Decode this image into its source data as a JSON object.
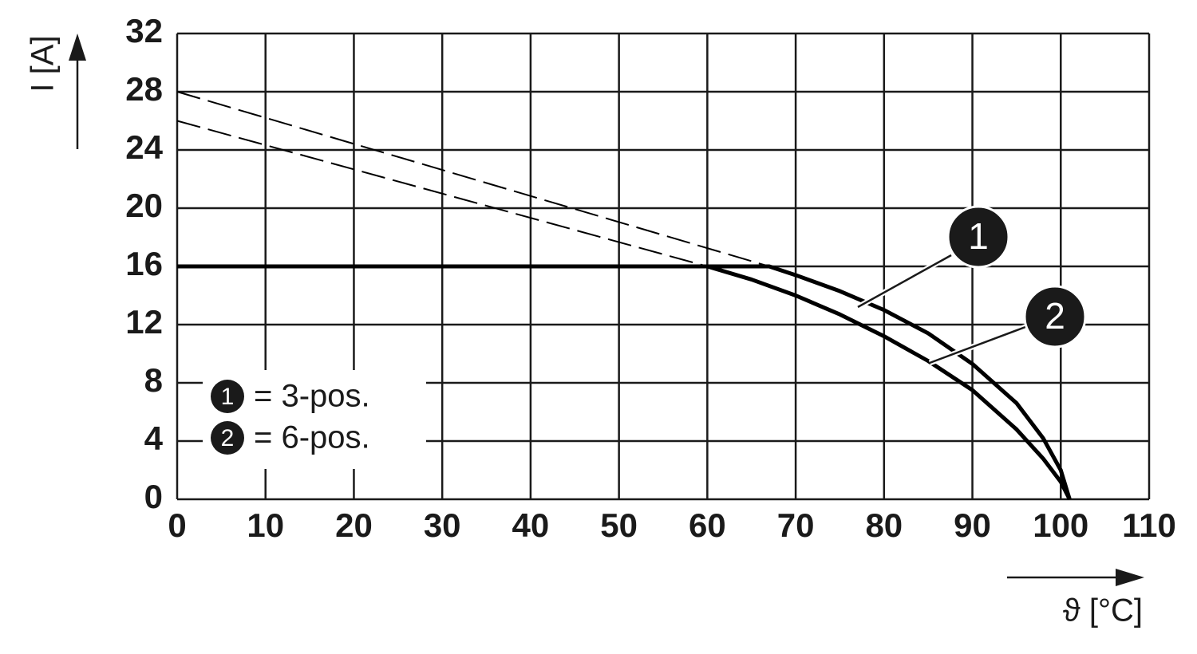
{
  "chart_data": {
    "type": "line",
    "x_label": "ϑ [°C]",
    "y_label": "I [A]",
    "xlim": [
      0,
      110
    ],
    "xticks": [
      0,
      10,
      20,
      30,
      40,
      50,
      60,
      70,
      80,
      90,
      100,
      110
    ],
    "ylim": [
      0,
      32
    ],
    "yticks": [
      0,
      4,
      8,
      12,
      16,
      20,
      24,
      28,
      32
    ],
    "grid": true,
    "series": [
      {
        "color": "#000000",
        "dashed": false,
        "x": [
          0,
          67,
          70,
          75,
          80,
          85,
          90,
          95,
          98,
          100,
          101
        ],
        "values": [
          16,
          16,
          15.4,
          14.3,
          13,
          11.4,
          9.3,
          6.6,
          4.2,
          2,
          0
        ]
      },
      {
        "color": "#000000",
        "dashed": false,
        "x": [
          0,
          60,
          65,
          70,
          75,
          80,
          85,
          90,
          95,
          98,
          100,
          101
        ],
        "values": [
          16,
          16,
          15.1,
          14,
          12.7,
          11.2,
          9.5,
          7.5,
          4.8,
          2.8,
          1.2,
          0
        ]
      },
      {
        "color": "#000000",
        "dashed": true,
        "x": [
          0,
          67
        ],
        "values": [
          28,
          16
        ]
      },
      {
        "color": "#000000",
        "dashed": true,
        "x": [
          0,
          60
        ],
        "values": [
          26,
          16
        ]
      }
    ],
    "callouts": [
      "1",
      "2"
    ],
    "legend": [
      {
        "marker": "1",
        "text": "= 3-pos."
      },
      {
        "marker": "2",
        "text": "= 6-pos."
      }
    ]
  }
}
